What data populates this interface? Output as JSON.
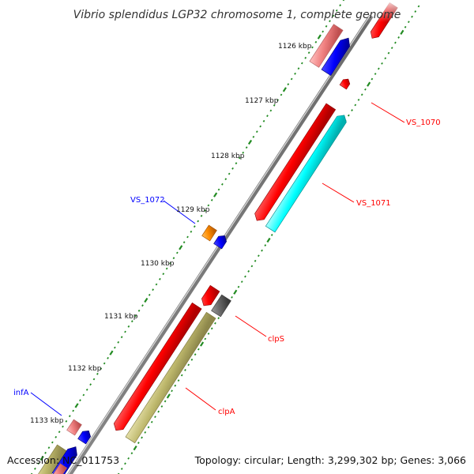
{
  "title": "Vibrio splendidus LGP32 chromosome 1, complete genome",
  "accession": "Accession: NC_011753",
  "topology": "Topology: circular; Length: 3,299,302 bp; Genes: 3,066",
  "ticks": [
    "1126 kbp",
    "1127 kbp",
    "1128 kbp",
    "1129 kbp",
    "1130 kbp",
    "1131 kbp",
    "1132 kbp",
    "1133 kbp"
  ],
  "genes": {
    "vs1070": "VS_1070",
    "vs1071": "VS_1071",
    "vs1072": "VS_1072",
    "clps": "clpS",
    "clpa": "clpA",
    "infa": "infA"
  },
  "colors": {
    "backbone": "#808080",
    "cds_forward": "#ff0000",
    "cds_forward_light": "#f08080",
    "cds_reverse": "#0000ff",
    "cyan_gene": "#00ffff",
    "olive_gene": "#bdb76b",
    "orange_gene": "#ff8c00",
    "gray_gene": "#666666",
    "tick_green": "#228b22",
    "label_red": "#ff0000",
    "label_blue": "#0000ff"
  }
}
